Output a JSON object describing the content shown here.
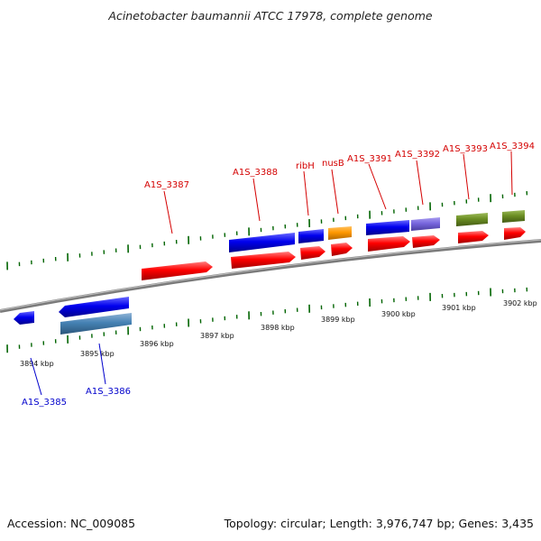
{
  "header": {
    "title": "Acinetobacter baumannii ATCC 17978, complete genome"
  },
  "footer": {
    "accession": "Accession: NC_009085",
    "summary": "Topology: circular; Length: 3,976,747 bp; Genes: 3,435"
  },
  "scale": {
    "ticks": [
      "3894 kbp",
      "3895 kbp",
      "3896 kbp",
      "3897 kbp",
      "3898 kbp",
      "3899 kbp",
      "3900 kbp",
      "3901 kbp",
      "3902 kbp"
    ]
  },
  "genes": {
    "forward": [
      "A1S_3387",
      "A1S_3388",
      "ribH",
      "nusB",
      "A1S_3391",
      "A1S_3392",
      "A1S_3393",
      "A1S_3394"
    ],
    "reverse": [
      "A1S_3385",
      "A1S_3386"
    ]
  },
  "colors": {
    "cds": "#ff0000",
    "blue_gene": "#0000ee",
    "steel_gene": "#4682b4",
    "orange_gene": "#ff9900",
    "purple_gene": "#7766dd",
    "olive_gene": "#6b8e23",
    "tick": "#006400",
    "axis": "#888888"
  }
}
